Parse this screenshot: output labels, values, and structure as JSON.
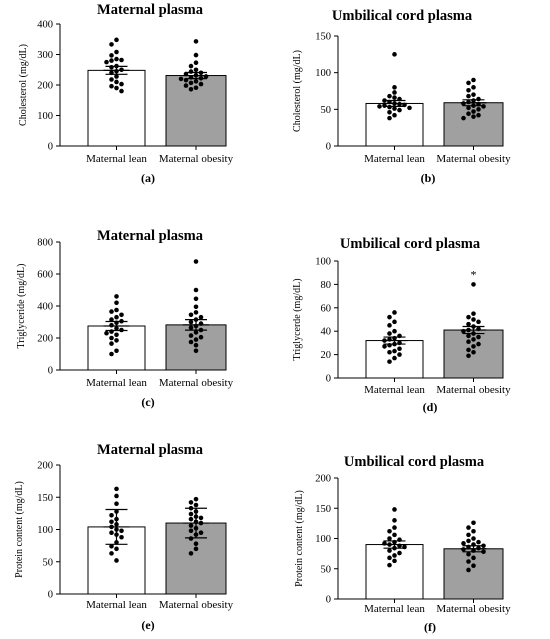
{
  "panels": [
    {
      "id": "a",
      "title": "Maternal plasma",
      "ylabel": "Cholesterol (mg/dL)"
    },
    {
      "id": "b",
      "title": "Umbilical cord plasma",
      "ylabel": "Cholesterol (mg/dL)"
    },
    {
      "id": "c",
      "title": "Maternal plasma",
      "ylabel": "Triglyceride (mg/dL)"
    },
    {
      "id": "d",
      "title": "Umbilical cord plasma",
      "ylabel": "Triglycerde (mg/dL)"
    },
    {
      "id": "e",
      "title": "Maternal plasma",
      "ylabel": "Protein content (mg/dL)"
    },
    {
      "id": "f",
      "title": "Umbilical cord plasma",
      "ylabel": "Protein content (mg/dL)"
    }
  ],
  "chart_data": [
    {
      "panel": "(a)",
      "type": "bar",
      "title": "Maternal plasma",
      "ylabel": "Cholesterol (mg/dL)",
      "ylim": [
        0,
        400
      ],
      "yticks": [
        0,
        100,
        200,
        300,
        400
      ],
      "categories": [
        "Maternal lean",
        "Maternal obesity"
      ],
      "values": [
        248,
        231
      ],
      "errors": [
        13,
        10
      ],
      "significance": [
        "",
        ""
      ],
      "points": [
        [
          348,
          333,
          308,
          297,
          285,
          282,
          280,
          275,
          262,
          258,
          250,
          245,
          240,
          228,
          218,
          210,
          203,
          196,
          190,
          180
        ],
        [
          343,
          298,
          273,
          262,
          250,
          244,
          240,
          236,
          232,
          228,
          225,
          222,
          220,
          216,
          212,
          207,
          203,
          198,
          191,
          186
        ]
      ],
      "colors": {
        "bar_1": "#ffffff",
        "bar_2": "#a0a0a0",
        "points": "#000000"
      }
    },
    {
      "panel": "(b)",
      "type": "bar",
      "title": "Umbilical cord plasma",
      "ylabel": "Cholesterol (mg/dL)",
      "ylim": [
        0,
        150
      ],
      "yticks": [
        0,
        50,
        100,
        150
      ],
      "categories": [
        "Maternal lean",
        "Maternal obesity"
      ],
      "values": [
        58,
        59
      ],
      "errors": [
        4,
        4
      ],
      "significance": [
        "",
        ""
      ],
      "points": [
        [
          125,
          80,
          73,
          68,
          66,
          64,
          62,
          60,
          58,
          57,
          56,
          55,
          54,
          53,
          52,
          51,
          49,
          46,
          42,
          38
        ],
        [
          90,
          86,
          80,
          76,
          70,
          68,
          64,
          62,
          60,
          58,
          57,
          55,
          54,
          52,
          50,
          47,
          44,
          42,
          40,
          38
        ]
      ],
      "colors": {
        "bar_1": "#ffffff",
        "bar_2": "#a0a0a0",
        "points": "#000000"
      }
    },
    {
      "panel": "(c)",
      "type": "bar",
      "title": "Maternal plasma",
      "ylabel": "Triglyceride (mg/dL)",
      "ylim": [
        0,
        800
      ],
      "yticks": [
        0,
        200,
        400,
        600,
        800
      ],
      "categories": [
        "Maternal lean",
        "Maternal obesity"
      ],
      "values": [
        275,
        282
      ],
      "errors": [
        28,
        33
      ],
      "significance": [
        "",
        ""
      ],
      "points": [
        [
          460,
          420,
          375,
          365,
          345,
          330,
          315,
          305,
          295,
          280,
          260,
          250,
          240,
          230,
          220,
          200,
          185,
          165,
          120,
          100
        ],
        [
          678,
          500,
          445,
          395,
          360,
          345,
          330,
          315,
          300,
          290,
          275,
          265,
          250,
          235,
          215,
          205,
          190,
          175,
          155,
          120
        ]
      ],
      "colors": {
        "bar_1": "#ffffff",
        "bar_2": "#a0a0a0",
        "points": "#000000"
      }
    },
    {
      "panel": "(d)",
      "type": "bar",
      "title": "Umbilical cord plasma",
      "ylabel": "Triglycerde (mg/dL)",
      "ylim": [
        0,
        100
      ],
      "yticks": [
        0,
        20,
        40,
        60,
        80,
        100
      ],
      "categories": [
        "Maternal lean",
        "Maternal obesity"
      ],
      "values": [
        32,
        41
      ],
      "errors": [
        3,
        3
      ],
      "significance": [
        "",
        "*"
      ],
      "points": [
        [
          56,
          52,
          48,
          45,
          40,
          38,
          36,
          34,
          33,
          32,
          30,
          29,
          28,
          27,
          25,
          23,
          22,
          20,
          17,
          14
        ],
        [
          80,
          55,
          52,
          50,
          48,
          46,
          44,
          42,
          41,
          40,
          38,
          36,
          35,
          33,
          31,
          29,
          27,
          24,
          22,
          19
        ]
      ],
      "colors": {
        "bar_1": "#ffffff",
        "bar_2": "#a0a0a0",
        "points": "#000000"
      }
    },
    {
      "panel": "(e)",
      "type": "bar",
      "title": "Maternal plasma",
      "ylabel": "Protein content (mg/dL)",
      "ylim": [
        0,
        200
      ],
      "yticks": [
        0,
        50,
        100,
        150,
        200
      ],
      "categories": [
        "Maternal lean",
        "Maternal obesity"
      ],
      "values": [
        104,
        110
      ],
      "errors": [
        27,
        23
      ],
      "significance": [
        "",
        ""
      ],
      "points": [
        [
          163,
          152,
          140,
          128,
          122,
          116,
          112,
          108,
          104,
          100,
          98,
          95,
          92,
          88,
          80,
          74,
          70,
          63,
          52
        ],
        [
          147,
          142,
          138,
          133,
          128,
          124,
          120,
          118,
          116,
          112,
          110,
          106,
          102,
          98,
          95,
          92,
          86,
          78,
          70,
          63
        ]
      ],
      "colors": {
        "bar_1": "#ffffff",
        "bar_2": "#a0a0a0",
        "points": "#000000"
      }
    },
    {
      "panel": "(f)",
      "type": "bar",
      "title": "Umbilical cord plasma",
      "ylabel": "Protein content (mg/dL)",
      "ylim": [
        0,
        200
      ],
      "yticks": [
        0,
        50,
        100,
        150,
        200
      ],
      "categories": [
        "Maternal lean",
        "Maternal obesity"
      ],
      "values": [
        90,
        83
      ],
      "errors": [
        6,
        5
      ],
      "significance": [
        "",
        ""
      ],
      "points": [
        [
          148,
          130,
          118,
          112,
          106,
          100,
          98,
          94,
          92,
          90,
          88,
          86,
          84,
          80,
          76,
          72,
          68,
          63,
          56
        ],
        [
          126,
          118,
          112,
          106,
          100,
          96,
          94,
          92,
          90,
          88,
          86,
          84,
          82,
          80,
          78,
          74,
          68,
          62,
          55,
          48
        ]
      ],
      "colors": {
        "bar_1": "#ffffff",
        "bar_2": "#a0a0a0",
        "points": "#000000"
      }
    }
  ]
}
